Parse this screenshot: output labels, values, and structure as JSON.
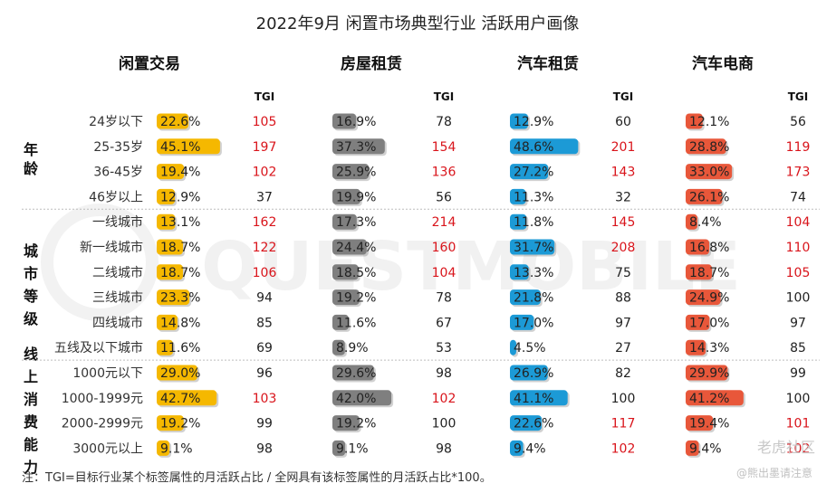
{
  "watermark": "QUESTMOBILE",
  "brand_watermark": "老虎社区",
  "author_watermark": "@熊出墨请注意",
  "footnote": "注：TGI=目标行业某个标签属性的月活跃占比 / 全网具有该标签属性的月活跃占比*100。",
  "colors": {
    "highlight_tgi": "#d9141b",
    "normal_tgi": "#222222"
  },
  "chart_data": {
    "type": "table",
    "title": "2022年9月 闲置市场典型行业 活跃用户画像",
    "tgi_label": "TGI",
    "industries": [
      {
        "name": "闲置交易",
        "color": "#f5b800"
      },
      {
        "name": "房屋租赁",
        "color": "#7f7f7f"
      },
      {
        "name": "汽车租赁",
        "color": "#1c9ad6"
      },
      {
        "name": "汽车电商",
        "color": "#e8573a"
      }
    ],
    "groups": [
      {
        "name": "年龄",
        "rows": [
          "24岁以下",
          "25-35岁",
          "36-45岁",
          "46岁以上"
        ]
      },
      {
        "name": "城市等级",
        "rows": [
          "一线城市",
          "新一线城市",
          "二线城市",
          "三线城市",
          "四线城市",
          "五线及以下城市"
        ]
      },
      {
        "name": "线上消费能力",
        "rows": [
          "1000元以下",
          "1000-1999元",
          "2000-2999元",
          "3000元以上"
        ]
      }
    ],
    "pct_labels": [
      [
        "22.6%",
        "16.9%",
        "12.9%",
        "12.1%"
      ],
      [
        "45.1%",
        "37.3%",
        "48.6%",
        "28.8%"
      ],
      [
        "19.4%",
        "25.9%",
        "27.2%",
        "33.0%"
      ],
      [
        "12.9%",
        "19.9%",
        "11.3%",
        "26.1%"
      ],
      [
        "13.1%",
        "17.3%",
        "11.8%",
        "8.4%"
      ],
      [
        "18.7%",
        "24.4%",
        "31.7%",
        "16.8%"
      ],
      [
        "18.7%",
        "18.5%",
        "13.3%",
        "18.7%"
      ],
      [
        "23.3%",
        "19.2%",
        "21.8%",
        "24.9%"
      ],
      [
        "14.8%",
        "11.6%",
        "17.0%",
        "17.0%"
      ],
      [
        "11.6%",
        "8.9%",
        "4.5%",
        "14.3%"
      ],
      [
        "29.0%",
        "29.6%",
        "26.9%",
        "29.9%"
      ],
      [
        "42.7%",
        "42.0%",
        "41.1%",
        "41.2%"
      ],
      [
        "19.2%",
        "19.2%",
        "22.6%",
        "19.4%"
      ],
      [
        "9.1%",
        "9.1%",
        "9.4%",
        "9.4%"
      ]
    ],
    "values": [
      [
        22.6,
        16.9,
        12.9,
        12.1
      ],
      [
        45.1,
        37.3,
        48.6,
        28.8
      ],
      [
        19.4,
        25.9,
        27.2,
        33.0
      ],
      [
        12.9,
        19.9,
        11.3,
        26.1
      ],
      [
        13.1,
        17.3,
        11.8,
        8.4
      ],
      [
        18.7,
        24.4,
        31.7,
        16.8
      ],
      [
        18.7,
        18.5,
        13.3,
        18.7
      ],
      [
        23.3,
        19.2,
        21.8,
        24.9
      ],
      [
        14.8,
        11.6,
        17.0,
        17.0
      ],
      [
        11.6,
        8.9,
        4.5,
        14.3
      ],
      [
        29.0,
        29.6,
        26.9,
        29.9
      ],
      [
        42.7,
        42.0,
        41.1,
        41.2
      ],
      [
        19.2,
        19.2,
        22.6,
        19.4
      ],
      [
        9.1,
        9.1,
        9.4,
        9.4
      ]
    ],
    "tgi": [
      [
        "105",
        "78",
        "60",
        "56"
      ],
      [
        "197",
        "154",
        "201",
        "119"
      ],
      [
        "102",
        "136",
        "143",
        "173"
      ],
      [
        "37",
        "56",
        "32",
        "74"
      ],
      [
        "162",
        "214",
        "145",
        "104"
      ],
      [
        "122",
        "160",
        "208",
        "110"
      ],
      [
        "106",
        "104",
        "75",
        "105"
      ],
      [
        "94",
        "78",
        "88",
        "100"
      ],
      [
        "85",
        "67",
        "97",
        "97"
      ],
      [
        "69",
        "53",
        "27",
        "85"
      ],
      [
        "96",
        "98",
        "82",
        "99"
      ],
      [
        "103",
        "102",
        "100",
        "100"
      ],
      [
        "99",
        "100",
        "117",
        "101"
      ],
      [
        "98",
        "98",
        "102",
        "102"
      ]
    ],
    "tgi_highlight": [
      [
        true,
        false,
        false,
        false
      ],
      [
        true,
        true,
        true,
        true
      ],
      [
        true,
        true,
        true,
        true
      ],
      [
        false,
        false,
        false,
        false
      ],
      [
        true,
        true,
        true,
        true
      ],
      [
        true,
        true,
        true,
        true
      ],
      [
        true,
        true,
        false,
        true
      ],
      [
        false,
        false,
        false,
        false
      ],
      [
        false,
        false,
        false,
        false
      ],
      [
        false,
        false,
        false,
        false
      ],
      [
        false,
        false,
        false,
        false
      ],
      [
        true,
        true,
        false,
        false
      ],
      [
        false,
        false,
        true,
        true
      ],
      [
        false,
        false,
        true,
        true
      ]
    ]
  }
}
